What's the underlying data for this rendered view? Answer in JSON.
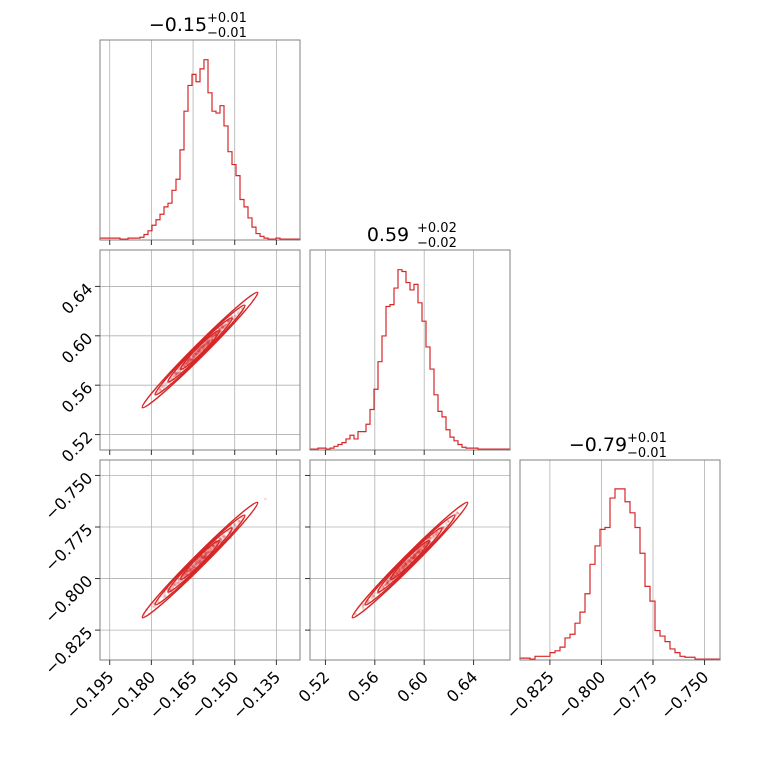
{
  "chart_data": {
    "type": "corner",
    "color": "#d62728",
    "grid": true,
    "parameters": [
      {
        "title": {
          "main": "−0.15",
          "sup": "+0.01",
          "sub": "−0.01"
        },
        "range": [
          -0.1985,
          -0.1265
        ],
        "ticks": [
          -0.195,
          -0.18,
          -0.165,
          -0.15,
          -0.135
        ],
        "tick_labels": [
          "−0.195",
          "−0.180",
          "−0.165",
          "−0.150",
          "−0.135"
        ],
        "hist": [
          0.01,
          0.01,
          0.01,
          0.01,
          0.01,
          0.005,
          0.005,
          0.01,
          0.01,
          0.01,
          0.015,
          0.03,
          0.05,
          0.08,
          0.11,
          0.14,
          0.18,
          0.2,
          0.27,
          0.33,
          0.49,
          0.7,
          0.84,
          0.9,
          0.86,
          0.93,
          0.98,
          0.8,
          0.7,
          0.69,
          0.73,
          0.62,
          0.48,
          0.41,
          0.35,
          0.22,
          0.18,
          0.12,
          0.07,
          0.035,
          0.02,
          0.01,
          0.005,
          0.005,
          0.01,
          0.005,
          0.005,
          0.005,
          0.005,
          0.005
        ]
      },
      {
        "title": {
          "main": "0.59",
          "sup": "+0.02",
          "sub": "−0.02"
        },
        "range": [
          0.5075,
          0.6695
        ],
        "ticks": [
          0.52,
          0.56,
          0.6,
          0.64
        ],
        "tick_labels": [
          "0.52",
          "0.56",
          "0.60",
          "0.64"
        ],
        "hist": [
          0.005,
          0.005,
          0.01,
          0.01,
          0.005,
          0.01,
          0.02,
          0.03,
          0.04,
          0.06,
          0.08,
          0.06,
          0.1,
          0.1,
          0.14,
          0.22,
          0.33,
          0.48,
          0.62,
          0.78,
          0.79,
          0.88,
          0.98,
          0.97,
          0.91,
          0.87,
          0.9,
          0.8,
          0.7,
          0.56,
          0.44,
          0.3,
          0.21,
          0.18,
          0.11,
          0.07,
          0.05,
          0.03,
          0.015,
          0.01,
          0.01,
          0.01,
          0.005,
          0.005,
          0.005,
          0.005,
          0.005,
          0.005,
          0.005,
          0.005
        ]
      },
      {
        "title": {
          "main": "−0.79",
          "sup": "+0.01",
          "sub": "−0.01"
        },
        "range": [
          -0.8395,
          -0.7425
        ],
        "ticks": [
          -0.825,
          -0.8,
          -0.775,
          -0.75
        ],
        "tick_labels": [
          "−0.825",
          "−0.800",
          "−0.775",
          "−0.750"
        ],
        "hist": [
          0.01,
          0.01,
          0.005,
          0.02,
          0.02,
          0.02,
          0.04,
          0.05,
          0.07,
          0.12,
          0.14,
          0.2,
          0.26,
          0.36,
          0.52,
          0.62,
          0.71,
          0.72,
          0.88,
          0.93,
          0.93,
          0.86,
          0.8,
          0.72,
          0.58,
          0.4,
          0.32,
          0.16,
          0.13,
          0.1,
          0.06,
          0.04,
          0.02,
          0.015,
          0.015,
          0.005,
          0.005,
          0.005,
          0.005,
          0.005
        ]
      }
    ],
    "correlations": {
      "0-1": 0.995,
      "0-2": 0.99,
      "1-2": 0.995
    },
    "sample_points": 350
  }
}
